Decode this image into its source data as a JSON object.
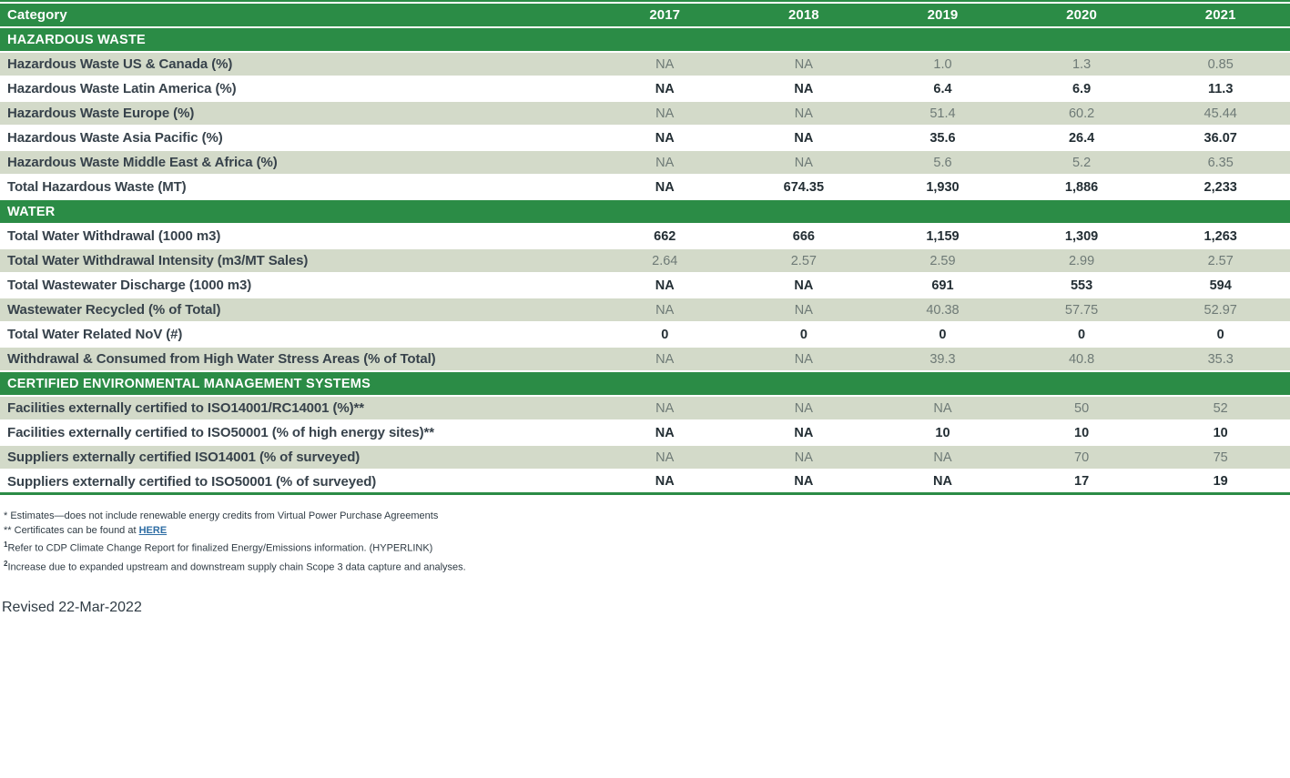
{
  "colors": {
    "green": "#2b8c46",
    "shade": "#d3dac9",
    "label": "#37424b",
    "value-dark": "#232e34",
    "value-gray": "#6e7a76",
    "link": "#2e6da4",
    "footnote": "#2f3b44"
  },
  "table": {
    "header": {
      "category": "Category",
      "years": [
        "2017",
        "2018",
        "2019",
        "2020",
        "2021"
      ]
    },
    "rows": [
      {
        "kind": "section",
        "label": "HAZARDOUS WASTE"
      },
      {
        "kind": "data",
        "shade": "shaded",
        "label": "Hazardous Waste US & Canada (%)",
        "values": [
          "NA",
          "NA",
          "1.0",
          "1.3",
          "0.85"
        ]
      },
      {
        "kind": "data",
        "shade": "plain",
        "label": "Hazardous Waste Latin America (%)",
        "values": [
          "NA",
          "NA",
          "6.4",
          "6.9",
          "11.3"
        ]
      },
      {
        "kind": "data",
        "shade": "shaded",
        "label": "Hazardous Waste Europe (%)",
        "values": [
          "NA",
          "NA",
          "51.4",
          "60.2",
          "45.44"
        ]
      },
      {
        "kind": "data",
        "shade": "plain",
        "label": "Hazardous Waste Asia Pacific (%)",
        "values": [
          "NA",
          "NA",
          "35.6",
          "26.4",
          "36.07"
        ]
      },
      {
        "kind": "data",
        "shade": "shaded",
        "label": "Hazardous Waste Middle East & Africa (%)",
        "values": [
          "NA",
          "NA",
          "5.6",
          "5.2",
          "6.35"
        ]
      },
      {
        "kind": "data",
        "shade": "plain",
        "label": "Total Hazardous Waste (MT)",
        "values": [
          "NA",
          "674.35",
          "1,930",
          "1,886",
          "2,233"
        ]
      },
      {
        "kind": "section",
        "label": "WATER"
      },
      {
        "kind": "data",
        "shade": "plain",
        "label": "Total Water Withdrawal (1000 m3)",
        "values": [
          "662",
          "666",
          "1,159",
          "1,309",
          "1,263"
        ]
      },
      {
        "kind": "data",
        "shade": "shaded",
        "label": "Total Water Withdrawal Intensity (m3/MT Sales)",
        "values": [
          "2.64",
          "2.57",
          "2.59",
          "2.99",
          "2.57"
        ]
      },
      {
        "kind": "data",
        "shade": "plain",
        "label": "Total Wastewater Discharge (1000 m3)",
        "values": [
          "NA",
          "NA",
          "691",
          "553",
          "594"
        ]
      },
      {
        "kind": "data",
        "shade": "shaded",
        "label": "Wastewater Recycled (% of Total)",
        "values": [
          "NA",
          "NA",
          "40.38",
          "57.75",
          "52.97"
        ]
      },
      {
        "kind": "data",
        "shade": "plain",
        "label": "Total Water Related NoV (#)",
        "values": [
          "0",
          "0",
          "0",
          "0",
          "0"
        ]
      },
      {
        "kind": "data",
        "shade": "shaded",
        "label": "Withdrawal & Consumed from High Water Stress Areas (% of Total)",
        "values": [
          "NA",
          "NA",
          "39.3",
          "40.8",
          "35.3"
        ]
      },
      {
        "kind": "section",
        "label": "CERTIFIED ENVIRONMENTAL MANAGEMENT SYSTEMS"
      },
      {
        "kind": "data",
        "shade": "shaded",
        "label": "Facilities externally certified to ISO14001/RC14001 (%)**",
        "values": [
          "NA",
          "NA",
          "NA",
          "50",
          "52"
        ]
      },
      {
        "kind": "data",
        "shade": "plain",
        "label": "Facilities externally certified to ISO50001 (% of high energy sites)**",
        "values": [
          "NA",
          "NA",
          "10",
          "10",
          "10"
        ]
      },
      {
        "kind": "data",
        "shade": "shaded",
        "label": "Suppliers externally certified ISO14001 (% of surveyed)",
        "values": [
          "NA",
          "NA",
          "NA",
          "70",
          "75"
        ]
      },
      {
        "kind": "data",
        "shade": "plain",
        "label": "Suppliers externally certified to ISO50001 (% of surveyed)",
        "values": [
          "NA",
          "NA",
          "NA",
          "17",
          "19"
        ]
      }
    ]
  },
  "footnotes": [
    {
      "marker": "*",
      "sup": false,
      "parts": [
        {
          "text": " Estimates—does not include renewable energy credits from Virtual Power Purchase Agreements"
        }
      ]
    },
    {
      "marker": "**",
      "sup": false,
      "parts": [
        {
          "text": " Certificates can be found at "
        },
        {
          "text": "HERE",
          "link": true
        }
      ]
    },
    {
      "marker": "1",
      "sup": true,
      "parts": [
        {
          "text": "Refer to CDP Climate Change Report for finalized Energy/Emissions information. (HYPERLINK)"
        }
      ]
    },
    {
      "marker": "2",
      "sup": true,
      "parts": [
        {
          "text": "Increase due to expanded upstream and downstream supply chain Scope 3 data capture and analyses."
        }
      ]
    }
  ],
  "revised": "Revised 22-Mar-2022"
}
